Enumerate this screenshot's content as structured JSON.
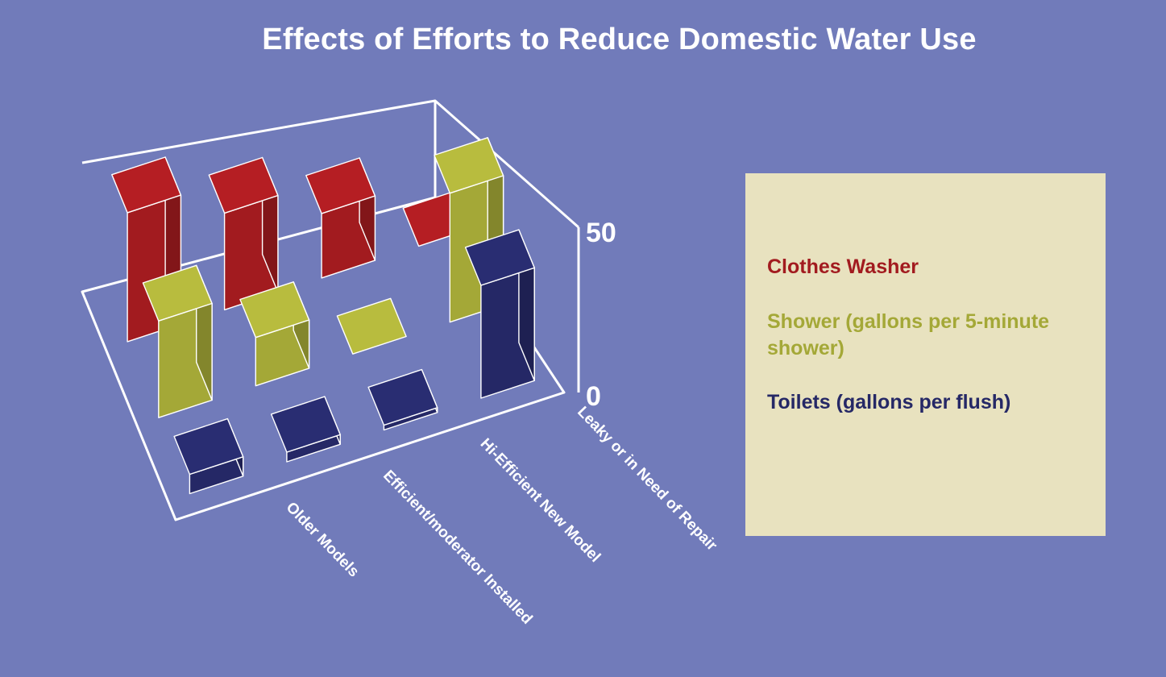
{
  "chart_data": {
    "type": "bar",
    "subtype": "3d-bar",
    "title": "Effects of Efforts to Reduce Domestic Water Use",
    "categories": [
      "Older Models",
      "Efficient/moderator Installed",
      "Hi-Efficient New Model",
      "Leaky or in Need of Repair"
    ],
    "series": [
      {
        "name": "Clothes Washer",
        "color": "#a21b1f",
        "values": [
          40,
          30,
          20,
          0
        ]
      },
      {
        "name": "Shower (gallons per 5-minute shower)",
        "color": "#a4a837",
        "values": [
          30,
          15,
          0,
          40
        ]
      },
      {
        "name": "Toilets (gallons per flush)",
        "color": "#252866",
        "values": [
          6,
          3,
          1.5,
          35
        ]
      }
    ],
    "z_ticks": [
      "0",
      "50"
    ],
    "zlim": [
      0,
      50
    ],
    "legend_position": "right"
  }
}
